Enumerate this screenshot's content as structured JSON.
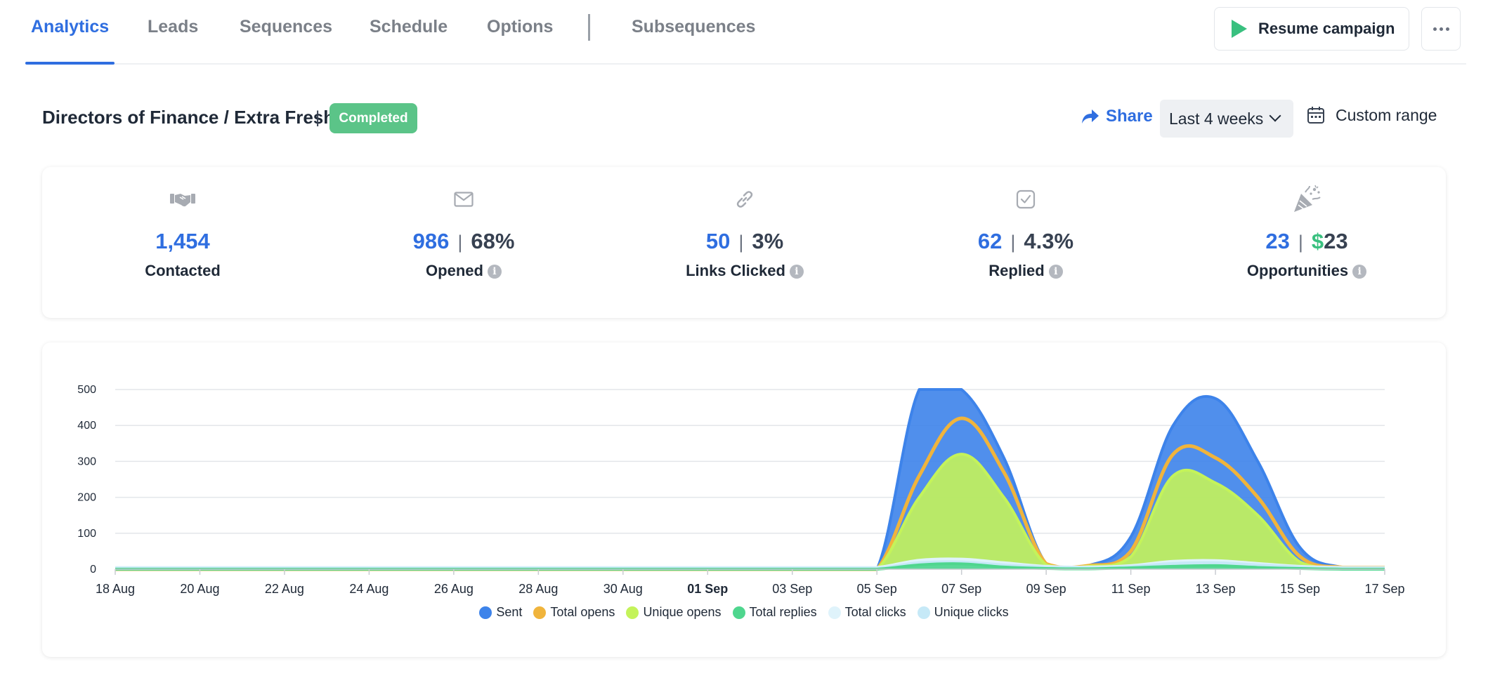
{
  "tabs": [
    {
      "label": "Analytics",
      "active": true
    },
    {
      "label": "Leads",
      "active": false
    },
    {
      "label": "Sequences",
      "active": false
    },
    {
      "label": "Schedule",
      "active": false
    },
    {
      "label": "Options",
      "active": false
    },
    {
      "label": "Subsequences",
      "active": false
    }
  ],
  "actions": {
    "resume_label": "Resume campaign",
    "more_icon": "more-horizontal-icon"
  },
  "campaign": {
    "title": "Directors of Finance / Extra Fresh",
    "separator": "|",
    "status": "Completed",
    "status_color": "#5bc488"
  },
  "toolbar": {
    "share_label": "Share",
    "range_value": "Last 4 weeks",
    "custom_range_label": "Custom range"
  },
  "stats": [
    {
      "icon": "handshake-icon",
      "value": "1,454",
      "label": "Contacted"
    },
    {
      "icon": "mail-icon",
      "value": "986",
      "secondary": "68%",
      "label": "Opened"
    },
    {
      "icon": "link-icon",
      "value": "50",
      "secondary": "3%",
      "label": "Links Clicked"
    },
    {
      "icon": "check-square-icon",
      "value": "62",
      "secondary": "4.3%",
      "label": "Replied"
    },
    {
      "icon": "party-popper-icon",
      "value": "23",
      "currency": "$",
      "secondary": "23",
      "label": "Opportunities"
    }
  ],
  "colors": {
    "accent": "#2f6ee0",
    "play": "#39c07f"
  },
  "chart_data": {
    "type": "area",
    "title": "",
    "xlabel": "",
    "ylabel": "",
    "ylim": [
      0,
      500
    ],
    "yticks": [
      0,
      100,
      200,
      300,
      400,
      500
    ],
    "grid": true,
    "legend_position": "bottom-center",
    "x_ticks": [
      "18 Aug",
      "20 Aug",
      "22 Aug",
      "24 Aug",
      "26 Aug",
      "28 Aug",
      "30 Aug",
      "01 Sep",
      "03 Sep",
      "05 Sep",
      "07 Sep",
      "09 Sep",
      "11 Sep",
      "13 Sep",
      "15 Sep",
      "17 Sep"
    ],
    "x_tick_bold": "01 Sep",
    "categories": [
      "18 Aug",
      "19 Aug",
      "20 Aug",
      "21 Aug",
      "22 Aug",
      "23 Aug",
      "24 Aug",
      "25 Aug",
      "26 Aug",
      "27 Aug",
      "28 Aug",
      "29 Aug",
      "30 Aug",
      "31 Aug",
      "01 Sep",
      "02 Sep",
      "03 Sep",
      "04 Sep",
      "05 Sep",
      "06 Sep",
      "07 Sep",
      "08 Sep",
      "09 Sep",
      "10 Sep",
      "11 Sep",
      "12 Sep",
      "13 Sep",
      "14 Sep",
      "15 Sep",
      "16 Sep",
      "17 Sep"
    ],
    "series": [
      {
        "name": "Sent",
        "color": "#3d83ea",
        "values": [
          0,
          0,
          0,
          0,
          0,
          0,
          0,
          0,
          0,
          0,
          0,
          0,
          0,
          0,
          0,
          0,
          0,
          0,
          0,
          500,
          500,
          310,
          15,
          10,
          90,
          400,
          475,
          300,
          60,
          5,
          0
        ]
      },
      {
        "name": "Total opens",
        "color": "#f0b43c",
        "values": [
          0,
          0,
          0,
          0,
          0,
          0,
          0,
          0,
          0,
          0,
          0,
          0,
          0,
          0,
          0,
          0,
          0,
          0,
          0,
          260,
          420,
          270,
          15,
          10,
          50,
          320,
          310,
          200,
          35,
          5,
          5
        ]
      },
      {
        "name": "Unique opens",
        "color": "#c4f35a",
        "values": [
          0,
          0,
          0,
          0,
          0,
          0,
          0,
          0,
          0,
          0,
          0,
          0,
          0,
          0,
          0,
          0,
          0,
          0,
          0,
          200,
          320,
          200,
          12,
          8,
          35,
          260,
          240,
          150,
          20,
          3,
          3
        ]
      },
      {
        "name": "Total replies",
        "color": "#4fd68e",
        "values": [
          0,
          0,
          0,
          0,
          0,
          0,
          0,
          0,
          0,
          0,
          0,
          0,
          0,
          0,
          0,
          0,
          0,
          0,
          0,
          12,
          15,
          6,
          2,
          1,
          4,
          8,
          10,
          5,
          2,
          0,
          0
        ]
      },
      {
        "name": "Total clicks",
        "color": "#dff3fb",
        "values": [
          5,
          5,
          5,
          5,
          5,
          5,
          5,
          5,
          5,
          5,
          5,
          5,
          5,
          5,
          5,
          5,
          5,
          5,
          5,
          25,
          28,
          18,
          8,
          6,
          10,
          22,
          24,
          16,
          8,
          5,
          5
        ]
      },
      {
        "name": "Unique clicks",
        "color": "#c6e9f7",
        "values": [
          3,
          3,
          3,
          3,
          3,
          3,
          3,
          3,
          3,
          3,
          3,
          3,
          3,
          3,
          3,
          3,
          3,
          3,
          3,
          18,
          20,
          12,
          6,
          4,
          8,
          16,
          18,
          12,
          6,
          3,
          3
        ]
      }
    ]
  }
}
